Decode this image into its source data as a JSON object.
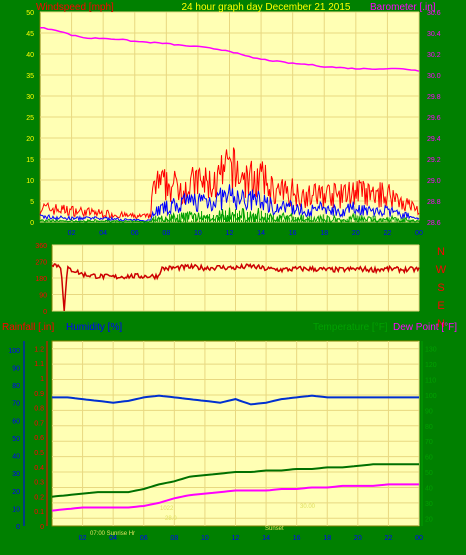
{
  "header": {
    "wind_label": "Windspeed [mph]",
    "title": "24 hour graph day   December 21 2015",
    "baro_label": "Barometer [.in]"
  },
  "panel3_labels": {
    "rain": "Rainfall [.in]",
    "humidity": "Humidity [%]",
    "temperature": "Temperature [°F]",
    "dewpoint": "Dew Point [°F]"
  },
  "x_ticks": [
    "02",
    "04",
    "06",
    "08",
    "10",
    "12",
    "14",
    "16",
    "18",
    "20",
    "22",
    "00"
  ],
  "compass": [
    "N",
    "W",
    "S",
    "E",
    "N"
  ],
  "faint_notes": [
    "07:00 Sunrise Hr",
    "Sunset",
    "1022",
    "28.0",
    "30.00"
  ],
  "colors": {
    "frame": "#008000",
    "plot_bg": "#ffffb4",
    "grid": "#e8d880",
    "wind": "#ff0000",
    "gust": "#ff0000",
    "windavg": "#0000ff",
    "windlow": "#00a000",
    "baro": "#ff00ff",
    "dir": "#cc0000",
    "humidity": "#0030d0",
    "temperature": "#007000",
    "dewpoint": "#ff00ff",
    "rain_axis": "#ff0000",
    "hum_axis": "#0000ff",
    "temp_axis": "#00a000",
    "title": "#ffff00"
  },
  "chart_data": [
    {
      "type": "line",
      "title": "24 hour graph day   December 21 2015",
      "ylabel": "Windspeed [mph]",
      "y2label": "Barometer [.in]",
      "ylim": [
        0,
        50
      ],
      "y2lim": [
        28.6,
        30.6
      ],
      "yticks": [
        0,
        5,
        10,
        15,
        20,
        25,
        30,
        35,
        40,
        45,
        50
      ],
      "y2ticks": [
        "28.6",
        "28.8",
        "29.0",
        "29.2",
        "29.4",
        "29.6",
        "29.8",
        "30.0",
        "30.2",
        "30.4",
        "30.6"
      ],
      "x_hours": [
        0,
        24
      ],
      "series": [
        {
          "name": "Windspeed",
          "role": "gust_envelope",
          "x": [
            0,
            2,
            4,
            6,
            7,
            7.2,
            8,
            9,
            10,
            11,
            12,
            13,
            14,
            15,
            16,
            17,
            18,
            19,
            20,
            21,
            22,
            23,
            24
          ],
          "values": [
            5,
            4,
            3,
            2,
            2,
            13,
            13,
            12,
            14,
            13,
            19,
            15,
            15,
            10,
            11,
            9,
            10,
            9,
            11,
            9,
            10,
            7,
            4
          ]
        },
        {
          "name": "Windspeed",
          "role": "average",
          "x": [
            0,
            2,
            4,
            6,
            7,
            7.2,
            8,
            9,
            10,
            11,
            12,
            13,
            14,
            15,
            16,
            17,
            18,
            19,
            20,
            21,
            22,
            23,
            24
          ],
          "values": [
            1.5,
            1,
            1,
            0.5,
            0.5,
            3,
            4,
            5,
            6,
            6,
            7,
            6,
            6,
            4,
            4,
            3,
            4,
            3,
            4,
            3,
            3,
            2,
            1
          ]
        },
        {
          "name": "Barometer",
          "role": "y2",
          "x": [
            0,
            1,
            2,
            3,
            4,
            5,
            6,
            7,
            8,
            9,
            10,
            11,
            12,
            13,
            14,
            15,
            16,
            17,
            18,
            19,
            20,
            21,
            22,
            23,
            24
          ],
          "values": [
            30.45,
            30.43,
            30.38,
            30.35,
            30.35,
            30.34,
            30.32,
            30.31,
            30.3,
            30.28,
            30.27,
            30.25,
            30.23,
            30.18,
            30.15,
            30.13,
            30.11,
            30.1,
            30.08,
            30.07,
            30.06,
            30.06,
            30.06,
            30.06,
            30.04
          ]
        }
      ]
    },
    {
      "type": "line",
      "ylabel": "Wind direction",
      "ylim": [
        0,
        360
      ],
      "yticks": [
        0,
        90,
        180,
        270,
        360
      ],
      "x_hours": [
        0,
        24
      ],
      "series": [
        {
          "name": "Direction",
          "x": [
            0,
            0.3,
            0.6,
            0.8,
            1,
            1.5,
            2,
            3,
            4,
            5,
            6,
            7,
            7.1,
            8,
            9,
            10,
            11,
            12,
            13,
            14,
            15,
            16,
            17,
            18,
            19,
            20,
            21,
            22,
            23,
            24
          ],
          "values": [
            260,
            250,
            240,
            0,
            230,
            220,
            200,
            190,
            185,
            190,
            190,
            190,
            230,
            235,
            240,
            235,
            238,
            235,
            245,
            230,
            225,
            230,
            230,
            225,
            225,
            230,
            225,
            230,
            225,
            228
          ]
        }
      ]
    },
    {
      "type": "line",
      "ylabel": "Rainfall [.in]",
      "ylim": [
        0,
        1.2
      ],
      "yticks": [
        "0",
        "0.1",
        "0.2",
        "0.3",
        "0.4",
        "0.5",
        "0.6",
        "0.7",
        "0.8",
        "0.9",
        "1",
        "1.1",
        "1.2"
      ],
      "y_hum_ticks": [
        0,
        10,
        20,
        30,
        40,
        50,
        60,
        70,
        80,
        90,
        100
      ],
      "y2label": "Temperature [°F]",
      "y2ticks": [
        20,
        30,
        40,
        50,
        60,
        70,
        80,
        90,
        100,
        110,
        120,
        130
      ],
      "x_hours": [
        0,
        24
      ],
      "series": [
        {
          "name": "Humidity",
          "axis": "humidity_0_100",
          "x": [
            0,
            1,
            2,
            3,
            4,
            5,
            6,
            7,
            8,
            9,
            10,
            11,
            12,
            13,
            14,
            15,
            16,
            17,
            18,
            19,
            20,
            21,
            22,
            23,
            24
          ],
          "values": [
            73,
            73,
            72,
            71,
            70,
            71,
            73,
            74,
            73,
            72,
            71,
            70,
            72,
            69,
            70,
            72,
            73,
            74,
            73,
            73,
            73,
            73,
            73,
            73,
            73
          ]
        },
        {
          "name": "Temperature",
          "axis": "temp",
          "x": [
            0,
            1,
            2,
            3,
            4,
            5,
            6,
            7,
            8,
            9,
            10,
            11,
            12,
            13,
            14,
            15,
            16,
            17,
            18,
            19,
            20,
            21,
            22,
            23,
            24
          ],
          "values": [
            34,
            35,
            36,
            37,
            37,
            37,
            39,
            42,
            44,
            47,
            48,
            49,
            50,
            50,
            51,
            51,
            52,
            52,
            53,
            53,
            54,
            55,
            55,
            55,
            55
          ]
        },
        {
          "name": "Dew Point",
          "axis": "temp",
          "x": [
            0,
            1,
            2,
            3,
            4,
            5,
            6,
            7,
            8,
            9,
            10,
            11,
            12,
            13,
            14,
            15,
            16,
            17,
            18,
            19,
            20,
            21,
            22,
            23,
            24
          ],
          "values": [
            25,
            26,
            27,
            27,
            27,
            27,
            28,
            30,
            33,
            35,
            36,
            37,
            38,
            38,
            38,
            39,
            39,
            40,
            40,
            41,
            41,
            41,
            42,
            42,
            42
          ]
        }
      ]
    }
  ]
}
